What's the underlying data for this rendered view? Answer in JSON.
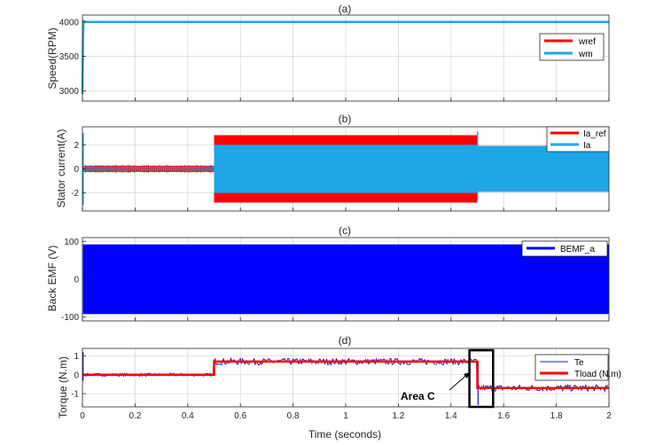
{
  "figure": {
    "xlabel": "Time (seconds)"
  },
  "colors": {
    "red": "#ff0000",
    "light_blue": "#1ea6e6",
    "blue": "#0000ff",
    "dark_blue": "#1c1cb8",
    "grid": "#d9d9d9",
    "axis": "#262626"
  },
  "chart_data": [
    {
      "type": "line",
      "title": "(a)",
      "ylabel": "Speed(RPM)",
      "xlim": [
        0,
        2
      ],
      "ylim": [
        2850,
        4100
      ],
      "yticks": [
        3000,
        3500,
        4000
      ],
      "grid": true,
      "legend_position": "top-right",
      "series": [
        {
          "name": "wref",
          "color": "#ff0000",
          "x": [
            0,
            0.004,
            2
          ],
          "y": [
            4000,
            4000,
            4000
          ]
        },
        {
          "name": "wm",
          "color": "#1ea6e6",
          "x": [
            0,
            0.002,
            0.004,
            0.006,
            0.01,
            2
          ],
          "y": [
            2950,
            3700,
            3990,
            4012,
            4000,
            4000
          ]
        }
      ]
    },
    {
      "type": "line",
      "title": "(b)",
      "ylabel": "Stator current(A)",
      "xlim": [
        0,
        2
      ],
      "ylim": [
        -3.5,
        3.5
      ],
      "yticks": [
        -2,
        0,
        2
      ],
      "grid": true,
      "legend_position": "top-right",
      "series": [
        {
          "name": "Ia_ref",
          "color": "#ff0000",
          "x": [
            0,
            0.5,
            0.5,
            1.5,
            1.5,
            2
          ],
          "y_envelope": [
            0.25,
            0.25,
            2.8,
            2.8,
            1.9,
            1.9
          ]
        },
        {
          "name": "Ia",
          "color": "#1ea6e6",
          "x": [
            0,
            0.5,
            0.5,
            1.5,
            1.5,
            2
          ],
          "y_envelope": [
            0.2,
            0.2,
            2.0,
            2.0,
            1.9,
            1.9
          ]
        }
      ]
    },
    {
      "type": "line",
      "title": "(c)",
      "ylabel": "Back EMF (V)",
      "xlim": [
        0,
        2
      ],
      "ylim": [
        -110,
        110
      ],
      "yticks": [
        -100,
        0,
        100
      ],
      "grid": true,
      "legend_position": "top-right",
      "series": [
        {
          "name": "BEMF_a",
          "color": "#0000ff",
          "x": [
            0,
            2
          ],
          "y_envelope": [
            92,
            92
          ]
        }
      ]
    },
    {
      "type": "line",
      "title": "(d)",
      "ylabel": "Torque (N.m)",
      "xlabel": "Time (seconds)",
      "xlim": [
        0,
        2
      ],
      "ylim": [
        -1.7,
        1.4
      ],
      "xticks": [
        0,
        0.2,
        0.4,
        0.6,
        0.8,
        1,
        1.2,
        1.4,
        1.6,
        1.8,
        2
      ],
      "xtick_labels": [
        "0",
        "0.2",
        "0.4",
        "0.6",
        "0.8",
        "1",
        "1.2",
        "1.4",
        "1.6",
        "1.8",
        "2"
      ],
      "yticks": [
        -1,
        0,
        1
      ],
      "grid": true,
      "legend_position": "top-right",
      "series": [
        {
          "name": "Te",
          "color": "#1c1cb8",
          "x": [
            0,
            0.5,
            0.5,
            1.5,
            1.5,
            2
          ],
          "y": [
            0,
            0,
            0.7,
            0.7,
            -0.7,
            -0.7
          ]
        },
        {
          "name": "Tload (N.m)",
          "color": "#ff0000",
          "x": [
            0,
            0.5,
            0.5,
            1.5,
            1.5,
            2
          ],
          "y": [
            0,
            0,
            0.7,
            0.7,
            -0.7,
            -0.7
          ]
        }
      ],
      "annotations": [
        {
          "text": "Area C",
          "x_box": [
            1.47,
            1.56
          ],
          "y_box": [
            -1.7,
            1.3
          ]
        }
      ]
    }
  ]
}
